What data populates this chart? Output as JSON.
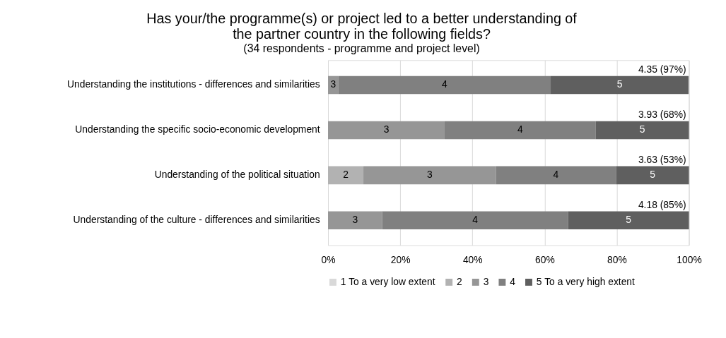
{
  "chart_data": {
    "type": "bar",
    "orientation": "horizontal",
    "stacked": true,
    "title": "Has your/the programme(s) or project led to a better understanding of the partner country in the following fields?",
    "subtitle": "(34 respondents - programme and project level)",
    "categories": [
      "Understanding the institutions - differences and similarities",
      "Understanding the specific socio-economic development",
      "Understanding of the political situation",
      "Understanding of the culture - differences and similarities"
    ],
    "series": [
      {
        "name": "1 To a very low extent",
        "color": "#d9d9d9",
        "values": [
          0,
          0,
          0,
          0
        ]
      },
      {
        "name": "2",
        "color": "#b2b2b2",
        "values": [
          0,
          0,
          9.8,
          0
        ]
      },
      {
        "name": "3",
        "color": "#969696",
        "values": [
          2.9,
          32.3,
          36.7,
          15.0
        ]
      },
      {
        "name": "4",
        "color": "#808080",
        "values": [
          58.8,
          41.9,
          33.3,
          51.5
        ]
      },
      {
        "name": "5 To a very high extent",
        "color": "#5f5f5f",
        "values": [
          38.2,
          25.8,
          20.2,
          33.5
        ]
      }
    ],
    "annotations": [
      "3",
      "4",
      "5",
      "3",
      "4",
      "5",
      "2",
      "3",
      "4",
      "5",
      "3",
      "4",
      "5"
    ],
    "totals": [
      "4.35 (97%)",
      "3.93 (68%)",
      "3.63 (53%)",
      "4.18 (85%)"
    ],
    "xlim": [
      0,
      100
    ],
    "xticks": [
      {
        "value": 0,
        "label": "0%"
      },
      {
        "value": 20,
        "label": "20%"
      },
      {
        "value": 40,
        "label": "40%"
      },
      {
        "value": 60,
        "label": "60%"
      },
      {
        "value": 80,
        "label": "80%"
      },
      {
        "value": 100,
        "label": "100%"
      }
    ],
    "grid": "x",
    "legend": "bottom"
  }
}
